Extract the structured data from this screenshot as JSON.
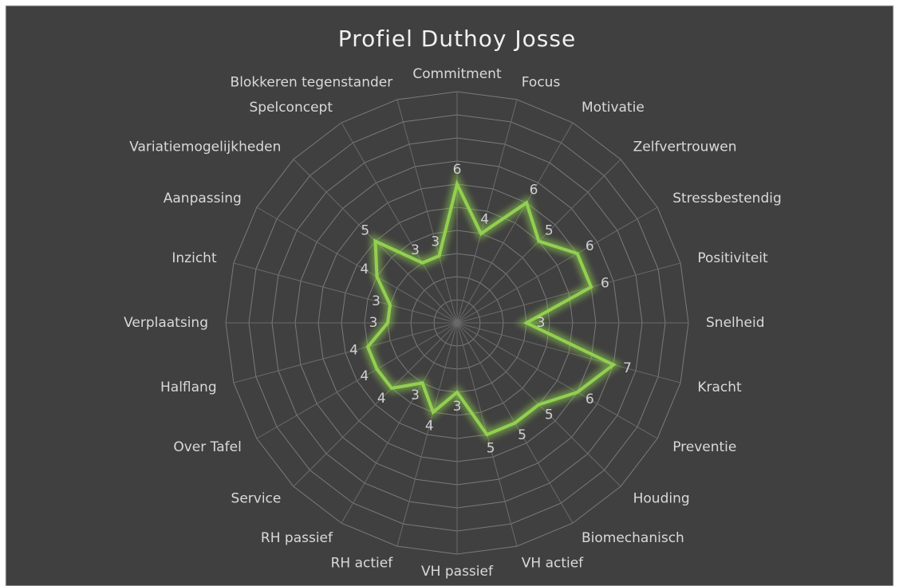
{
  "chart_data": {
    "type": "radar",
    "title": "Profiel Duthoy Josse",
    "categories": [
      "Commitment",
      "Focus",
      "Motivatie",
      "Zelfvertrouwen",
      "Stressbestendig",
      "Positiviteit",
      "Snelheid",
      "Kracht",
      "Preventie",
      "Houding",
      "Biomechanisch",
      "VH actief",
      "VH passief",
      "RH actief",
      "RH passief",
      "Service",
      "Over Tafel",
      "Halflang",
      "Verplaatsing",
      "Inzicht",
      "Aanpassing",
      "Variatiemogelijkheden",
      "Spelconcept",
      "Blokkeren tegenstander"
    ],
    "values": [
      6,
      4,
      6,
      5,
      6,
      6,
      3,
      7,
      6,
      5,
      5,
      5,
      3,
      4,
      3,
      4,
      4,
      4,
      3,
      3,
      4,
      5,
      3,
      3
    ],
    "color": "#92d050",
    "ylim": [
      0,
      10
    ],
    "yticks": [
      1,
      2,
      3,
      4,
      5,
      6,
      7,
      8,
      9,
      10
    ],
    "grid": true
  }
}
